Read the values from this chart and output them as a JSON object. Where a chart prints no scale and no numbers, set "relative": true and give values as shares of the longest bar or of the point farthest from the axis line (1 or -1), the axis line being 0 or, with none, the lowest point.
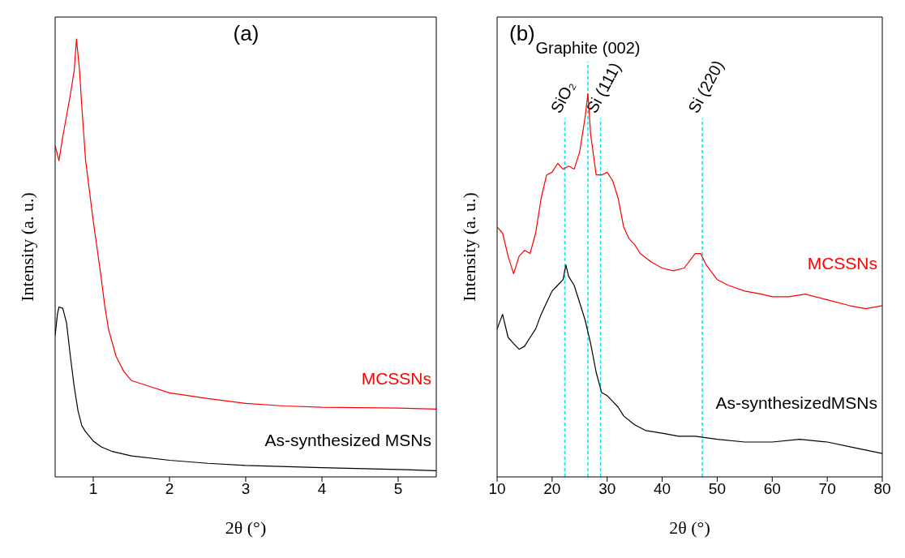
{
  "chart_data": [
    {
      "type": "line",
      "title": "(a)",
      "xlabel": "2θ (°)",
      "ylabel": "Intensity (a. u.)",
      "relative": true,
      "xlim": [
        0.5,
        5.5
      ],
      "xticks": [
        1,
        2,
        3,
        4,
        5
      ],
      "series": [
        {
          "name": "MCSSNs",
          "color": "#ff0000",
          "x": [
            0.5,
            0.55,
            0.6,
            0.65,
            0.7,
            0.75,
            0.78,
            0.82,
            0.85,
            0.9,
            0.95,
            1.0,
            1.05,
            1.1,
            1.15,
            1.2,
            1.3,
            1.4,
            1.5,
            1.75,
            2.0,
            2.5,
            3.0,
            3.5,
            4.0,
            4.5,
            5.0,
            5.5
          ],
          "values": [
            0.756,
            0.722,
            0.777,
            0.825,
            0.873,
            0.928,
            1,
            0.928,
            0.845,
            0.722,
            0.653,
            0.584,
            0.522,
            0.46,
            0.392,
            0.337,
            0.275,
            0.241,
            0.22,
            0.206,
            0.192,
            0.179,
            0.168,
            0.162,
            0.159,
            0.158,
            0.157,
            0.155
          ]
        },
        {
          "name": "As-synthesized MSNs",
          "color": "#000000",
          "x": [
            0.5,
            0.53,
            0.55,
            0.6,
            0.65,
            0.7,
            0.75,
            0.8,
            0.85,
            0.9,
            1.0,
            1.1,
            1.25,
            1.5,
            2.0,
            2.5,
            3.0,
            4.0,
            5.0,
            5.5
          ],
          "values": [
            0.323,
            0.371,
            0.388,
            0.385,
            0.351,
            0.275,
            0.206,
            0.151,
            0.117,
            0.103,
            0.082,
            0.069,
            0.058,
            0.048,
            0.038,
            0.031,
            0.026,
            0.021,
            0.017,
            0.014
          ]
        }
      ]
    },
    {
      "type": "line",
      "title": "(b)",
      "xlabel": "2θ (°)",
      "ylabel": "Intensity (a. u.)",
      "relative": true,
      "xlim": [
        10,
        80
      ],
      "xticks": [
        10,
        20,
        30,
        40,
        50,
        60,
        70,
        80
      ],
      "ref_lines": [
        {
          "axis": "x",
          "value": 22.3,
          "label": "SiO₂",
          "color": "#00e5ee",
          "line_style": "dashed"
        },
        {
          "axis": "x",
          "value": 26.5,
          "label": "Graphite (002)",
          "color": "#00e5ee",
          "line_style": "dashed"
        },
        {
          "axis": "x",
          "value": 28.8,
          "label": "Si (111)",
          "color": "#00e5ee",
          "line_style": "dashed"
        },
        {
          "axis": "x",
          "value": 47.3,
          "label": "Si (220)",
          "color": "#00e5ee",
          "line_style": "dashed"
        }
      ],
      "series": [
        {
          "name": "MCSSNs",
          "color": "#ff0000",
          "x": [
            10,
            11,
            12,
            13,
            14,
            15,
            16,
            17,
            18,
            19,
            20,
            21,
            22,
            23,
            24,
            25,
            26,
            26.5,
            27,
            28,
            29,
            30,
            31,
            32,
            33,
            34,
            35,
            36,
            38,
            40,
            42,
            44,
            46,
            47,
            48,
            50,
            52,
            55,
            58,
            60,
            63,
            66,
            70,
            74,
            77,
            80
          ],
          "values": [
            0.652,
            0.636,
            0.576,
            0.53,
            0.576,
            0.591,
            0.583,
            0.636,
            0.727,
            0.788,
            0.795,
            0.818,
            0.803,
            0.811,
            0.803,
            0.848,
            0.939,
            1,
            0.894,
            0.788,
            0.788,
            0.795,
            0.773,
            0.727,
            0.652,
            0.621,
            0.606,
            0.583,
            0.561,
            0.545,
            0.538,
            0.545,
            0.583,
            0.583,
            0.553,
            0.515,
            0.5,
            0.485,
            0.477,
            0.47,
            0.47,
            0.477,
            0.462,
            0.447,
            0.439,
            0.447
          ]
        },
        {
          "name": "As-synthesizedMSNs",
          "color": "#000000",
          "x": [
            10,
            11,
            12,
            13,
            14,
            15,
            16,
            17,
            18,
            19,
            20,
            21,
            22,
            22.5,
            23,
            24,
            25,
            26,
            27,
            28,
            29,
            30,
            31,
            32,
            33,
            35,
            37,
            40,
            43,
            46,
            50,
            55,
            60,
            65,
            70,
            75,
            80
          ],
          "values": [
            0.386,
            0.424,
            0.364,
            0.348,
            0.333,
            0.341,
            0.364,
            0.386,
            0.424,
            0.455,
            0.485,
            0.5,
            0.515,
            0.553,
            0.523,
            0.5,
            0.455,
            0.409,
            0.348,
            0.273,
            0.22,
            0.212,
            0.197,
            0.182,
            0.159,
            0.136,
            0.121,
            0.114,
            0.106,
            0.106,
            0.098,
            0.091,
            0.091,
            0.098,
            0.091,
            0.076,
            0.061
          ]
        }
      ]
    }
  ]
}
